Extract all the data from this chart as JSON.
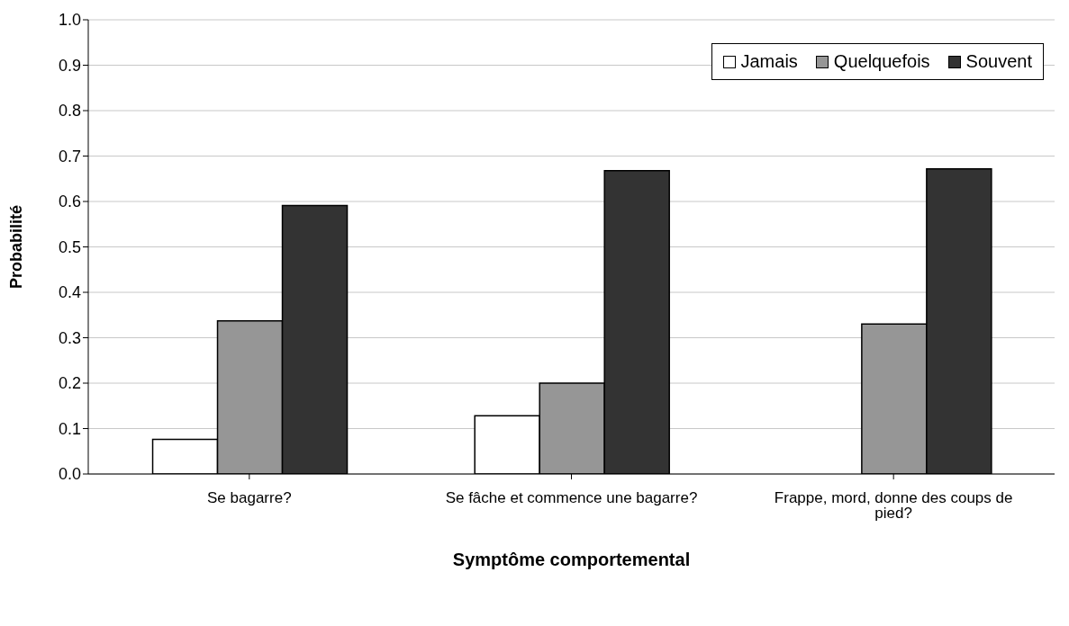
{
  "chart_data": {
    "type": "bar",
    "xlabel": "Symptôme comportemental",
    "ylabel": "Probabilité",
    "categories": [
      "Se bagarre?",
      "Se fâche et commence une bagarre?",
      "Frappe, mord, donne des coups de pied?"
    ],
    "series": [
      {
        "name": "Jamais",
        "color": "#ffffff",
        "values": [
          0.076,
          0.128,
          0
        ]
      },
      {
        "name": "Quelquefois",
        "color": "#969696",
        "values": [
          0.337,
          0.2,
          0.33
        ]
      },
      {
        "name": "Souvent",
        "color": "#333333",
        "values": [
          0.591,
          0.668,
          0.672
        ]
      }
    ],
    "ylim": [
      0,
      1
    ],
    "yticks": [
      {
        "value": 0,
        "label": "0.0"
      },
      0.1,
      0.2,
      0.3,
      0.4,
      0.5,
      0.6,
      0.7,
      0.8,
      0.9,
      {
        "value": 1,
        "label": "1.0"
      }
    ],
    "grid": "y",
    "legend": "top right"
  }
}
